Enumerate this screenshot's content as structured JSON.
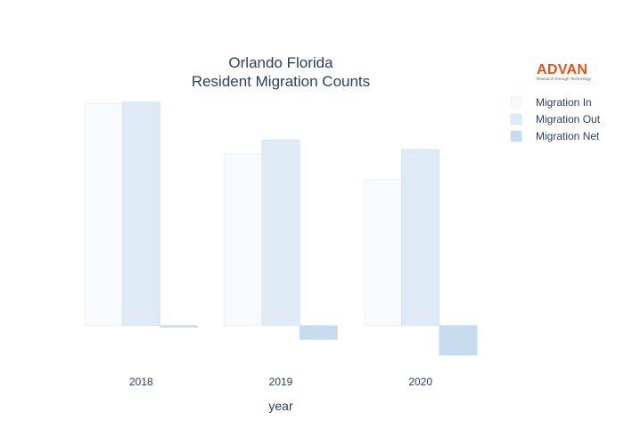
{
  "chart_data": {
    "type": "bar",
    "title": [
      "Orlando Florida",
      "Resident Migration Counts"
    ],
    "xlabel": "year",
    "ylabel": "",
    "categories": [
      "2018",
      "2019",
      "2020"
    ],
    "series": [
      {
        "name": "Migration In",
        "values": [
          253,
          196,
          167
        ],
        "color": "#f7fbff",
        "stroke": "#e3ecf6"
      },
      {
        "name": "Migration Out",
        "values": [
          255,
          212,
          201
        ],
        "color": "#deebf7",
        "stroke": "#cddff0"
      },
      {
        "name": "Migration Net",
        "values": [
          -2,
          -16,
          -34
        ],
        "color": "#c6dbef",
        "stroke": "#c6dbef"
      }
    ],
    "ylim": [
      -45,
      270
    ],
    "y_axis_visible": false,
    "grid": false,
    "legend": "top-right"
  },
  "logo": {
    "name": "ADVAN",
    "tagline": "Research through Technology",
    "color": "#e4521b"
  }
}
